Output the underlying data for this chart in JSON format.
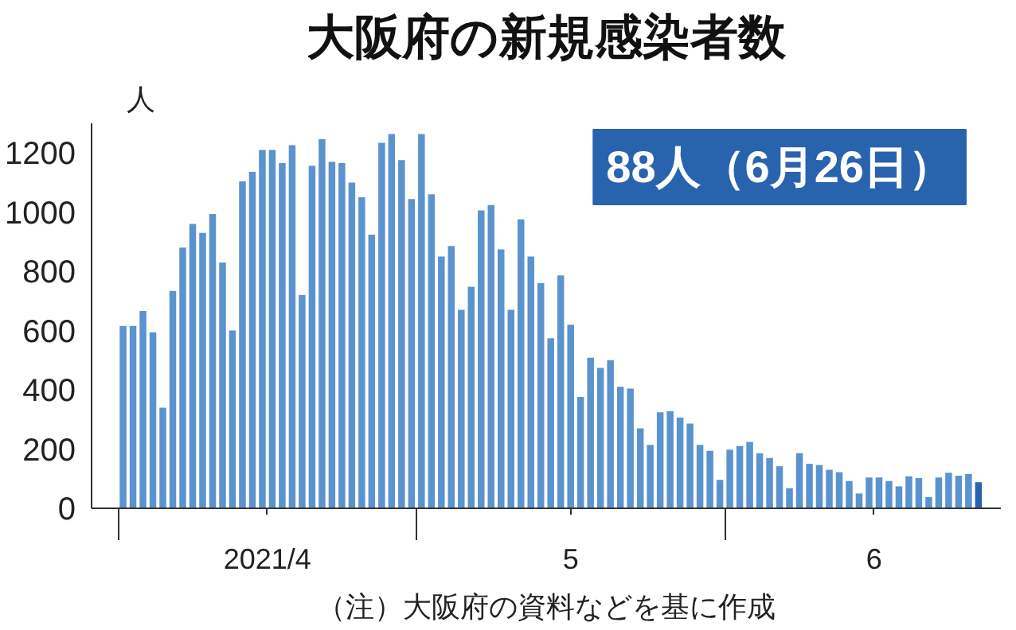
{
  "chart_data": {
    "type": "bar",
    "title": "大阪府の新規感染者数",
    "ylabel": "人",
    "x": [
      "2021-04-01",
      "2021-04-02",
      "2021-04-03",
      "2021-04-04",
      "2021-04-05",
      "2021-04-06",
      "2021-04-07",
      "2021-04-08",
      "2021-04-09",
      "2021-04-10",
      "2021-04-11",
      "2021-04-12",
      "2021-04-13",
      "2021-04-14",
      "2021-04-15",
      "2021-04-16",
      "2021-04-17",
      "2021-04-18",
      "2021-04-19",
      "2021-04-20",
      "2021-04-21",
      "2021-04-22",
      "2021-04-23",
      "2021-04-24",
      "2021-04-25",
      "2021-04-26",
      "2021-04-27",
      "2021-04-28",
      "2021-04-29",
      "2021-04-30",
      "2021-05-01",
      "2021-05-02",
      "2021-05-03",
      "2021-05-04",
      "2021-05-05",
      "2021-05-06",
      "2021-05-07",
      "2021-05-08",
      "2021-05-09",
      "2021-05-10",
      "2021-05-11",
      "2021-05-12",
      "2021-05-13",
      "2021-05-14",
      "2021-05-15",
      "2021-05-16",
      "2021-05-17",
      "2021-05-18",
      "2021-05-19",
      "2021-05-20",
      "2021-05-21",
      "2021-05-22",
      "2021-05-23",
      "2021-05-24",
      "2021-05-25",
      "2021-05-26",
      "2021-05-27",
      "2021-05-28",
      "2021-05-29",
      "2021-05-30",
      "2021-05-31",
      "2021-06-01",
      "2021-06-02",
      "2021-06-03",
      "2021-06-04",
      "2021-06-05",
      "2021-06-06",
      "2021-06-07",
      "2021-06-08",
      "2021-06-09",
      "2021-06-10",
      "2021-06-11",
      "2021-06-12",
      "2021-06-13",
      "2021-06-14",
      "2021-06-15",
      "2021-06-16",
      "2021-06-17",
      "2021-06-18",
      "2021-06-19",
      "2021-06-20",
      "2021-06-21",
      "2021-06-22",
      "2021-06-23",
      "2021-06-24",
      "2021-06-25",
      "2021-06-26"
    ],
    "values": [
      616,
      616,
      666,
      594,
      340,
      734,
      880,
      960,
      930,
      994,
      830,
      600,
      1104,
      1136,
      1210,
      1210,
      1166,
      1226,
      720,
      1156,
      1246,
      1170,
      1166,
      1100,
      1050,
      924,
      1234,
      1264,
      1176,
      1044,
      1264,
      1060,
      850,
      886,
      670,
      748,
      1006,
      1024,
      874,
      670,
      976,
      850,
      760,
      574,
      786,
      620,
      376,
      508,
      474,
      500,
      410,
      404,
      270,
      214,
      324,
      328,
      306,
      286,
      214,
      194,
      96,
      198,
      210,
      224,
      186,
      170,
      142,
      68,
      186,
      150,
      146,
      130,
      122,
      92,
      50,
      104,
      104,
      92,
      74,
      108,
      102,
      38,
      104,
      120,
      110,
      116,
      88
    ],
    "colors": [
      "#5b93cf",
      "#5b93cf",
      "#5b93cf",
      "#5b93cf",
      "#5b93cf",
      "#5b93cf",
      "#5b93cf",
      "#5b93cf",
      "#5b93cf",
      "#5b93cf",
      "#5b93cf",
      "#5b93cf",
      "#5b93cf",
      "#5b93cf",
      "#5b93cf",
      "#5b93cf",
      "#5b93cf",
      "#5b93cf",
      "#5b93cf",
      "#5b93cf",
      "#5b93cf",
      "#5b93cf",
      "#5b93cf",
      "#5b93cf",
      "#5b93cf",
      "#5b93cf",
      "#5b93cf",
      "#5b93cf",
      "#5b93cf",
      "#5b93cf",
      "#5b93cf",
      "#5b93cf",
      "#5b93cf",
      "#5b93cf",
      "#5b93cf",
      "#5b93cf",
      "#5b93cf",
      "#5b93cf",
      "#5b93cf",
      "#5b93cf",
      "#5b93cf",
      "#5b93cf",
      "#5b93cf",
      "#5b93cf",
      "#5b93cf",
      "#5b93cf",
      "#5b93cf",
      "#5b93cf",
      "#5b93cf",
      "#5b93cf",
      "#5b93cf",
      "#5b93cf",
      "#5b93cf",
      "#5b93cf",
      "#5b93cf",
      "#5b93cf",
      "#5b93cf",
      "#5b93cf",
      "#5b93cf",
      "#5b93cf",
      "#5b93cf",
      "#5b93cf",
      "#5b93cf",
      "#5b93cf",
      "#5b93cf",
      "#5b93cf",
      "#5b93cf",
      "#5b93cf",
      "#5b93cf",
      "#5b93cf",
      "#5b93cf",
      "#5b93cf",
      "#5b93cf",
      "#5b93cf",
      "#5b93cf",
      "#5b93cf",
      "#5b93cf",
      "#5b93cf",
      "#5b93cf",
      "#5b93cf",
      "#5b93cf",
      "#5b93cf",
      "#5b93cf",
      "#5b93cf",
      "#5b93cf",
      "#5b93cf",
      "#2a63ad"
    ],
    "xlim": [
      "2021-03-28T20:00",
      "2021-06-28T06:00"
    ],
    "xticks": [
      {
        "value": "2021-03-31T12:00",
        "label": null
      },
      {
        "value": "2021-04-15T12:00",
        "label": "2021/4"
      },
      {
        "value": "2021-04-30T12:00",
        "label": null
      },
      {
        "value": "2021-05-16",
        "label": "5"
      },
      {
        "value": "2021-05-31T12:00",
        "label": null
      },
      {
        "value": "2021-06-15T12:00",
        "label": "6"
      }
    ],
    "ylim": [
      0,
      1300
    ],
    "yticks": [
      0,
      200,
      400,
      600,
      800,
      1000,
      1200
    ],
    "grid": false,
    "annotations": [
      "88人（6月26日）",
      "（注）大阪府の資料などを基に作成"
    ]
  }
}
